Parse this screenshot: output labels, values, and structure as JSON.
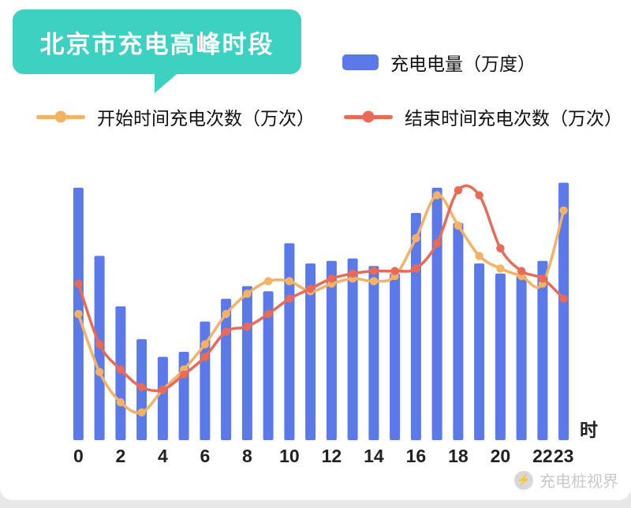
{
  "title": {
    "text": "北京市充电高峰时段"
  },
  "watermark": "充电桩视界",
  "colors": {
    "badge": "#3dd1c1",
    "bar": "#5b79e8",
    "start": "#f4b266",
    "end": "#e96a57"
  },
  "chart_data": {
    "type": "bar",
    "title": "北京市充电高峰时段",
    "x": [
      0,
      1,
      2,
      3,
      4,
      5,
      6,
      7,
      8,
      9,
      10,
      11,
      12,
      13,
      14,
      15,
      16,
      17,
      18,
      19,
      20,
      21,
      22,
      23
    ],
    "x_ticks": [
      0,
      2,
      4,
      6,
      8,
      10,
      12,
      14,
      16,
      18,
      20,
      22,
      23
    ],
    "x_unit": "时",
    "xlabel": "时",
    "ylabel": "",
    "ylim": [
      0,
      110
    ],
    "grid": false,
    "legend_position": "top",
    "bar_series": {
      "name": "充电电量（万度）",
      "values": [
        100,
        73,
        53,
        40,
        33,
        35,
        47,
        56,
        61,
        59,
        78,
        70,
        71,
        72,
        69,
        66,
        90,
        100,
        86,
        70,
        66,
        65,
        71,
        102
      ]
    },
    "line_series": [
      {
        "name": "开始时间充电次数（万次）",
        "type": "line",
        "color_key": "start",
        "values": [
          50,
          27,
          15,
          11,
          20,
          28,
          38,
          50,
          58,
          63,
          63,
          59,
          62,
          64,
          63,
          65,
          80,
          97,
          85,
          73,
          68,
          65,
          62,
          91
        ]
      },
      {
        "name": "结束时间充电次数（万次）",
        "type": "line",
        "color_key": "end",
        "values": [
          62,
          38,
          28,
          21,
          20,
          26,
          33,
          43,
          45,
          50,
          56,
          60,
          64,
          66,
          67,
          67,
          68,
          78,
          99,
          97,
          76,
          67,
          64,
          56
        ]
      }
    ]
  }
}
